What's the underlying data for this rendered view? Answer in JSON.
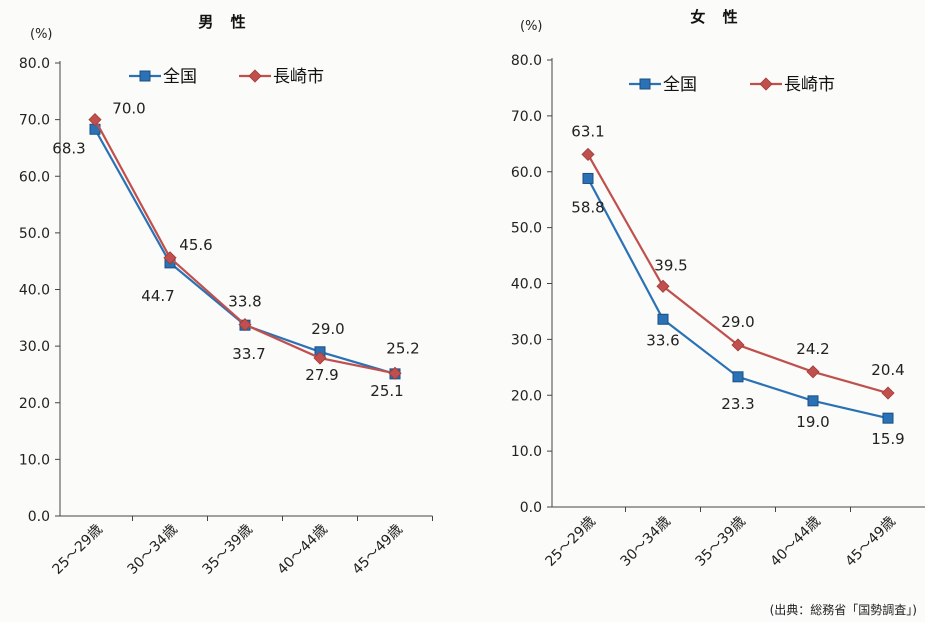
{
  "chart_data": [
    {
      "type": "line",
      "title": "男 性",
      "unit_label": "(%)",
      "ylim": [
        0,
        80
      ],
      "yticks": [
        "0.0",
        "10.0",
        "20.0",
        "30.0",
        "40.0",
        "50.0",
        "60.0",
        "70.0",
        "80.0"
      ],
      "categories": [
        "25～29歳",
        "30～34歳",
        "35～39歳",
        "40～44歳",
        "45～49歳"
      ],
      "grid": false,
      "legend_position": "top",
      "series": [
        {
          "name": "全国",
          "marker": "square",
          "color": "#2a72b5",
          "values": [
            68.3,
            44.7,
            33.7,
            29.0,
            25.1
          ],
          "labels": [
            "68.3",
            "44.7",
            "33.7",
            "29.0",
            "25.1"
          ]
        },
        {
          "name": "長崎市",
          "marker": "diamond",
          "color": "#c0504d",
          "values": [
            70.0,
            45.6,
            33.8,
            27.9,
            25.2
          ],
          "labels": [
            "70.0",
            "45.6",
            "33.8",
            "27.9",
            "25.2"
          ]
        }
      ]
    },
    {
      "type": "line",
      "title": "女 性",
      "unit_label": "(%)",
      "ylim": [
        0,
        80
      ],
      "yticks": [
        "0.0",
        "10.0",
        "20.0",
        "30.0",
        "40.0",
        "50.0",
        "60.0",
        "70.0",
        "80.0"
      ],
      "categories": [
        "25～29歳",
        "30～34歳",
        "35～39歳",
        "40～44歳",
        "45～49歳"
      ],
      "grid": false,
      "legend_position": "top",
      "series": [
        {
          "name": "全国",
          "marker": "square",
          "color": "#2a72b5",
          "values": [
            58.8,
            33.6,
            23.3,
            19.0,
            15.9
          ],
          "labels": [
            "58.8",
            "33.6",
            "23.3",
            "19.0",
            "15.9"
          ]
        },
        {
          "name": "長崎市",
          "marker": "diamond",
          "color": "#c0504d",
          "values": [
            63.1,
            39.5,
            29.0,
            24.2,
            20.4
          ],
          "labels": [
            "63.1",
            "39.5",
            "29.0",
            "24.2",
            "20.4"
          ]
        }
      ]
    }
  ],
  "source_note": "(出典：総務省「国勢調査」)"
}
